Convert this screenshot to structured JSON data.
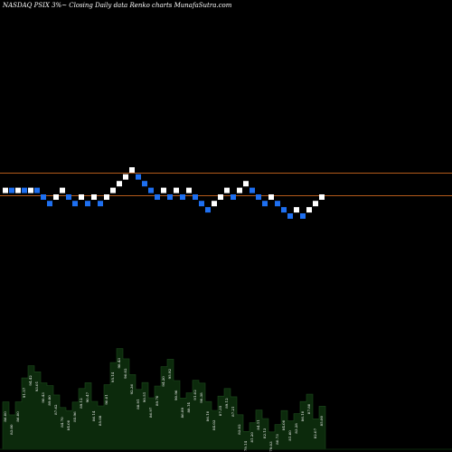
{
  "header": {
    "title": "NASDAQ PSIX  3%~  Closing Daily data  Renko  charts MunafaSutra.com"
  },
  "chart_data": {
    "type": "renko",
    "title": "NASDAQ PSIX  3%~  Closing Daily data  Renko  charts MunafaSutra.com",
    "ticker": "PSIX",
    "exchange": "NASDAQ",
    "brick_size_label": "3%",
    "reference_lines": [
      94.5,
      92.3
    ],
    "colors": {
      "background": "#000000",
      "up_brick": "#ffffff",
      "down_brick": "#1e6ff0",
      "reference_line": "#b35a1a",
      "volume_fill": "#0c2a0c"
    },
    "bricks": [
      {
        "dir": "up",
        "level": 90.0
      },
      {
        "dir": "down",
        "level": 90.0
      },
      {
        "dir": "up",
        "level": 90.0
      },
      {
        "dir": "down",
        "level": 90.0
      },
      {
        "dir": "up",
        "level": 90.0
      },
      {
        "dir": "down",
        "level": 90.0
      },
      {
        "dir": "down",
        "level": 87.3
      },
      {
        "dir": "down",
        "level": 84.7
      },
      {
        "dir": "up",
        "level": 87.3
      },
      {
        "dir": "up",
        "level": 90.0
      },
      {
        "dir": "down",
        "level": 87.3
      },
      {
        "dir": "down",
        "level": 84.7
      },
      {
        "dir": "up",
        "level": 87.3
      },
      {
        "dir": "down",
        "level": 84.7
      },
      {
        "dir": "up",
        "level": 87.3
      },
      {
        "dir": "down",
        "level": 84.7
      },
      {
        "dir": "up",
        "level": 87.3
      },
      {
        "dir": "up",
        "level": 90.0
      },
      {
        "dir": "up",
        "level": 92.7
      },
      {
        "dir": "up",
        "level": 95.4
      },
      {
        "dir": "up",
        "level": 98.2
      },
      {
        "dir": "down",
        "level": 95.4
      },
      {
        "dir": "down",
        "level": 92.7
      },
      {
        "dir": "down",
        "level": 90.0
      },
      {
        "dir": "down",
        "level": 87.3
      },
      {
        "dir": "up",
        "level": 90.0
      },
      {
        "dir": "down",
        "level": 87.3
      },
      {
        "dir": "up",
        "level": 90.0
      },
      {
        "dir": "down",
        "level": 87.3
      },
      {
        "dir": "up",
        "level": 90.0
      },
      {
        "dir": "down",
        "level": 87.3
      },
      {
        "dir": "down",
        "level": 84.7
      },
      {
        "dir": "down",
        "level": 82.2
      },
      {
        "dir": "up",
        "level": 84.7
      },
      {
        "dir": "up",
        "level": 87.3
      },
      {
        "dir": "up",
        "level": 90.0
      },
      {
        "dir": "down",
        "level": 87.3
      },
      {
        "dir": "up",
        "level": 90.0
      },
      {
        "dir": "up",
        "level": 92.7
      },
      {
        "dir": "down",
        "level": 90.0
      },
      {
        "dir": "down",
        "level": 87.3
      },
      {
        "dir": "down",
        "level": 84.7
      },
      {
        "dir": "up",
        "level": 87.3
      },
      {
        "dir": "down",
        "level": 84.7
      },
      {
        "dir": "down",
        "level": 82.2
      },
      {
        "dir": "down",
        "level": 79.7
      },
      {
        "dir": "up",
        "level": 82.2
      },
      {
        "dir": "down",
        "level": 79.7
      },
      {
        "dir": "up",
        "level": 82.2
      },
      {
        "dir": "up",
        "level": 84.7
      },
      {
        "dir": "up",
        "level": 87.3
      }
    ],
    "closing_prices": {
      "visible_labels": [
        "86.00",
        "83.00",
        "86.00",
        "91.57",
        "94.42",
        "93.01",
        "90.43",
        "89.80",
        "87.62",
        "84.70",
        "84.00",
        "85.96",
        "89.12",
        "90.47",
        "86.14",
        "85.08",
        "90.01",
        "95.14",
        "98.43",
        "96.02",
        "92.36",
        "88.91",
        "90.51",
        "86.97",
        "89.70",
        "94.20",
        "95.92",
        "90.96",
        "86.89",
        "88.14",
        "91.02",
        "90.38",
        "86.10",
        "84.03",
        "87.35",
        "89.12",
        "87.21",
        "83.02",
        "79.14",
        "81.20",
        "84.11",
        "82.13",
        "79.03",
        "80.73",
        "84.00",
        "81.60",
        "83.28",
        "86.10",
        "87.80",
        "82.07",
        "85.00"
      ],
      "values": [
        86.0,
        83.0,
        86.0,
        91.57,
        94.42,
        93.01,
        90.43,
        89.8,
        87.62,
        84.7,
        84.0,
        85.96,
        89.12,
        90.47,
        86.14,
        85.08,
        90.01,
        95.14,
        98.43,
        96.02,
        92.36,
        88.91,
        90.51,
        86.97,
        89.7,
        94.2,
        95.92,
        90.96,
        86.89,
        88.14,
        91.02,
        90.38,
        86.1,
        84.03,
        87.35,
        89.12,
        87.21,
        83.02,
        79.14,
        81.2,
        84.11,
        82.13,
        79.03,
        80.73,
        84.0,
        81.6,
        83.28,
        86.1,
        87.8,
        82.07,
        85.0
      ]
    }
  }
}
